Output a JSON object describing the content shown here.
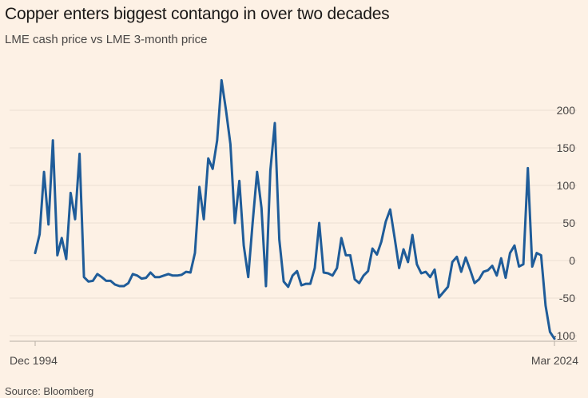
{
  "chart_data": {
    "type": "line",
    "title": "Copper enters biggest contango in over two decades",
    "subtitle": "LME cash price vs LME 3-month price",
    "source": "Source: Bloomberg",
    "x_start_label": "Dec 1994",
    "x_end_label": "Mar 2024",
    "ylim": [
      -110,
      250
    ],
    "yticks": [
      -100,
      -50,
      0,
      50,
      100,
      150,
      200
    ],
    "ytick_labels": [
      "-100",
      "-50",
      "0",
      "50",
      "100",
      "150",
      "200"
    ],
    "grid": true,
    "line_color": "#1f5c99",
    "series": [
      {
        "values": [
          10,
          35,
          118,
          48,
          160,
          7,
          30,
          2,
          90,
          55,
          142,
          -22,
          -28,
          -27,
          -18,
          -22,
          -27,
          -27,
          -32,
          -34,
          -34,
          -30,
          -18,
          -20,
          -24,
          -23,
          -16,
          -22,
          -22,
          -20,
          -18,
          -20,
          -20,
          -19,
          -15,
          -16,
          10,
          98,
          55,
          136,
          122,
          160,
          240,
          200,
          155,
          50,
          106,
          20,
          -22,
          50,
          118,
          70,
          -34,
          120,
          183,
          28,
          -28,
          -35,
          -20,
          -14,
          -33,
          -31,
          -31,
          -10,
          50,
          -16,
          -17,
          -20,
          -10,
          30,
          7,
          7,
          -25,
          -30,
          -20,
          -14,
          16,
          8,
          25,
          52,
          68,
          30,
          -10,
          15,
          -2,
          34,
          -5,
          -17,
          -15,
          -22,
          -12,
          -49,
          -42,
          -35,
          -2,
          5,
          -15,
          4,
          -12,
          -30,
          -25,
          -15,
          -13,
          -7,
          -20,
          3,
          -23,
          10,
          20,
          -8,
          -5,
          123,
          -8,
          10,
          7,
          -60,
          -95,
          -104
        ]
      }
    ]
  }
}
